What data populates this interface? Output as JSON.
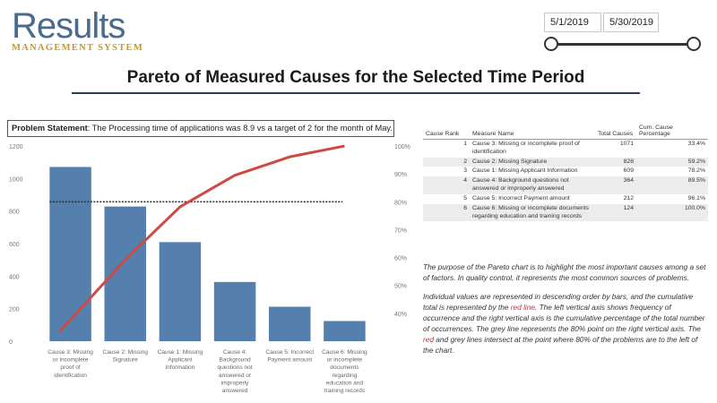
{
  "logo": {
    "main": "Results",
    "sub": "MANAGEMENT SYSTEM"
  },
  "date_filter": {
    "start": "5/1/2019",
    "end": "5/30/2019"
  },
  "title": "Pareto of Measured Causes for the Selected Time Period",
  "problem": {
    "label": "Problem Statement",
    "text": ": The Processing time of applications was 8.9 vs a target of 2 for the month of May."
  },
  "chart_data": {
    "type": "bar",
    "categories": [
      [
        "Cause 3: Missing",
        "or incomplete",
        "proof of",
        "identification"
      ],
      [
        "Cause 2: Missing",
        "Signature"
      ],
      [
        "Cause 1: Missing",
        "Applicant",
        "Information"
      ],
      [
        "Cause 4:",
        "Background",
        "questions not",
        "answered or",
        "improperly",
        "answered"
      ],
      [
        "Cause 5: Incorrect",
        "Payment amount"
      ],
      [
        "Cause 6: Missing",
        "or incomplete",
        "documents",
        "regarding",
        "education and",
        "training records"
      ]
    ],
    "series": [
      {
        "name": "Total Causes",
        "type": "bar",
        "values": [
          1071,
          828,
          609,
          364,
          212,
          124
        ],
        "color": "#5580ad"
      },
      {
        "name": "Cum. Cause Percentage",
        "type": "line",
        "axis": "right",
        "values": [
          33.4,
          59.2,
          78.2,
          89.5,
          96.1,
          100.0
        ],
        "color": "#cc4a44"
      },
      {
        "name": "80% line",
        "type": "reference",
        "axis": "right",
        "value": 80,
        "color": "#333333"
      }
    ],
    "y_left": {
      "ylim": [
        0,
        1200
      ],
      "ticks": [
        "0",
        "200",
        "400",
        "600",
        "800",
        "1000",
        "1200"
      ]
    },
    "y_right": {
      "ylim": [
        30,
        100
      ],
      "ticks": [
        "40%",
        "50%",
        "60%",
        "70%",
        "80%",
        "90%",
        "100%"
      ]
    }
  },
  "table": {
    "headers": [
      "Cause Rank",
      "Measure Name",
      "Total Causes",
      "Cum. Cause Percentage"
    ],
    "rows": [
      {
        "rank": "1",
        "name": "Cause 3: Missing or incomplete proof of identification",
        "total": "1071",
        "pct": "33.4%"
      },
      {
        "rank": "2",
        "name": "Cause 2: Missing Signature",
        "total": "828",
        "pct": "59.2%"
      },
      {
        "rank": "3",
        "name": "Cause 1: Missing Applicant Information",
        "total": "609",
        "pct": "78.2%"
      },
      {
        "rank": "4",
        "name": "Cause 4: Background questions not answered or improperly answered",
        "total": "364",
        "pct": "89.5%"
      },
      {
        "rank": "5",
        "name": "Cause 5: Incorrect Payment amount",
        "total": "212",
        "pct": "96.1%"
      },
      {
        "rank": "6",
        "name": "Cause 6: Missing or incomplete documents regarding education and training records",
        "total": "124",
        "pct": "100.0%"
      }
    ]
  },
  "description": {
    "p1": "The purpose of the Pareto chart is to highlight the most important causes among a set of factors. In quality control, it represents the most common sources of problems.",
    "p2_a": "Individual values are represented in descending order by bars, and the cumulative total is represented by the ",
    "p2_red": "red line",
    "p2_b": ". The left vertical axis shows frequency of occurrence and the right vertical axis is the cumulative percentage of the total number of occurrences. The grey line represents the 80% point on the right vertical axis. The ",
    "p2_red2": "red",
    "p2_c": " and grey lines intersect at the point where 80% of the problems are to the left of the chart."
  }
}
